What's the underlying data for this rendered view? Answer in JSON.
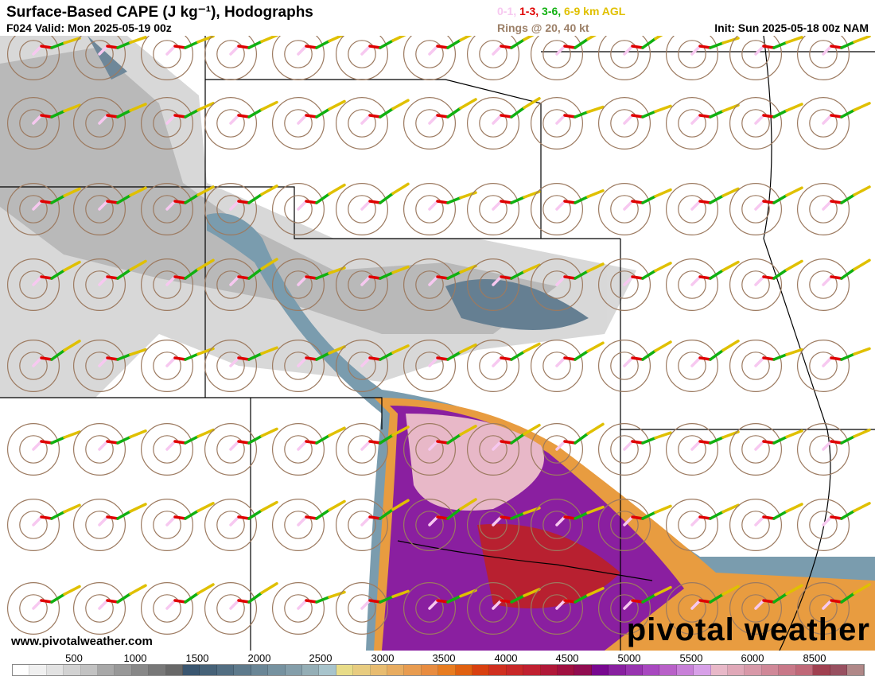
{
  "header": {
    "title": "Surface-Based CAPE (J kg⁻¹), Hodographs",
    "valid": "F024 Valid: Mon 2025-05-19 00z",
    "legend": [
      {
        "text": "0-1,",
        "color": "#f7c8f0"
      },
      {
        "text": "1-3,",
        "color": "#e00000"
      },
      {
        "text": "3-6,",
        "color": "#10b010"
      },
      {
        "text": "6-9 km AGL",
        "color": "#e0c000"
      }
    ],
    "rings": "Rings @ 20, 40 kt",
    "init": "Init: Sun 2025-05-18 00z NAM"
  },
  "footer": {
    "website": "www.pivotalweather.com",
    "logo": "pivotal weather"
  },
  "colorbar": {
    "labels": [
      "500",
      "1000",
      "1500",
      "2000",
      "2500",
      "3000",
      "3500",
      "4000",
      "4500",
      "5000",
      "5500",
      "6000",
      "8500"
    ],
    "colors": [
      "#ffffff",
      "#f0f0f0",
      "#e2e2e2",
      "#d2d2d2",
      "#c2c2c2",
      "#a8a8a8",
      "#989898",
      "#888888",
      "#787878",
      "#686868",
      "#3a5670",
      "#466278",
      "#526e82",
      "#5e7a8c",
      "#6a8696",
      "#7692a0",
      "#849eaa",
      "#94aeb6",
      "#a8c4cc",
      "#e8dc88",
      "#e8cc80",
      "#e8bc70",
      "#e8ac60",
      "#e89c50",
      "#e88c40",
      "#e87c20",
      "#e06010",
      "#d84010",
      "#d03020",
      "#c82828",
      "#c02030",
      "#b01838",
      "#a01040",
      "#900c50",
      "#780890",
      "#8820a0",
      "#9834b0",
      "#a848c0",
      "#b860c8",
      "#c880d8",
      "#d8a0e8",
      "#e8b8c8",
      "#e0a8b8",
      "#d898a8",
      "#d08898",
      "#c87888",
      "#c06878",
      "#a04050",
      "#985060",
      "#b08888"
    ]
  }
}
